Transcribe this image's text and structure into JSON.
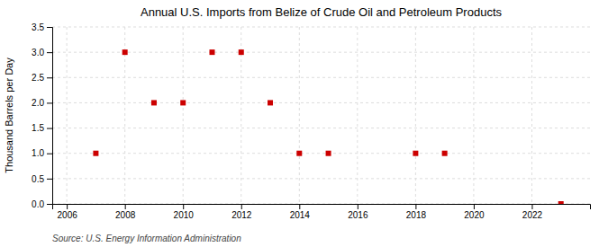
{
  "chart_data": {
    "type": "scatter",
    "title": "Annual U.S. Imports from Belize of Crude Oil and Petroleum Products",
    "ylabel": "Thousand Barrels per Day",
    "annotations": [
      "Source: U.S. Energy Information Administration"
    ],
    "x": [
      2007,
      2008,
      2009,
      2010,
      2011,
      2012,
      2013,
      2014,
      2015,
      2018,
      2019,
      2023
    ],
    "values": [
      1.0,
      3.0,
      2.0,
      2.0,
      3.0,
      3.0,
      2.0,
      1.0,
      1.0,
      1.0,
      1.0,
      0.0
    ],
    "color": "#cc0000",
    "marker": "square",
    "xlim": [
      2005.5,
      2024.0
    ],
    "ylim": [
      0.0,
      3.5
    ],
    "xticks": [
      2006,
      2008,
      2010,
      2012,
      2014,
      2016,
      2018,
      2020,
      2022
    ],
    "yticks": [
      {
        "value": 0.0,
        "label": "0.0"
      },
      {
        "value": 0.5,
        "label": "0.5"
      },
      {
        "value": 1.0,
        "label": "1.0"
      },
      {
        "value": 1.5,
        "label": "1.5"
      },
      {
        "value": 2.0,
        "label": "2.0"
      },
      {
        "value": 2.5,
        "label": "2.5"
      },
      {
        "value": 3.0,
        "label": "3.0"
      },
      {
        "value": 3.5,
        "label": "3.5"
      }
    ],
    "grid": true
  }
}
